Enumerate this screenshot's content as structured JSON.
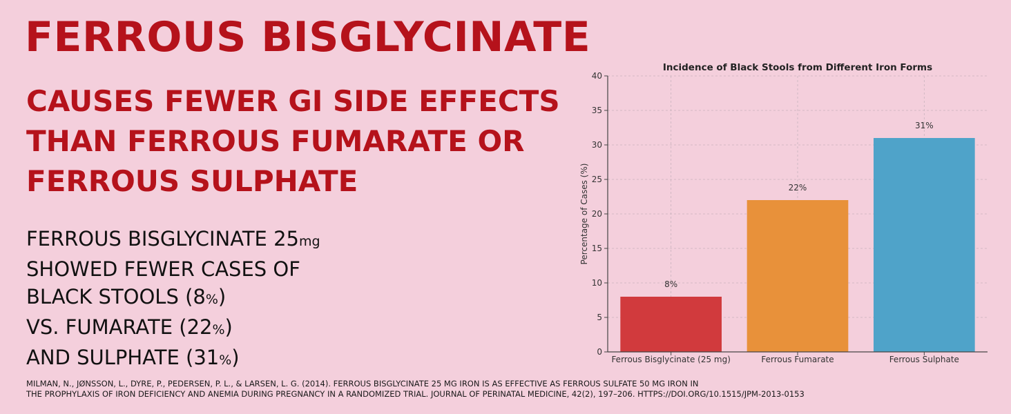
{
  "headline": "FERROUS BISGLYCINATE",
  "subheadline": [
    "CAUSES FEWER GI SIDE EFFECTS",
    "THAN FERROUS FUMARATE OR",
    "FERROUS SULPHATE"
  ],
  "body": {
    "line1_main": "FERROUS BISGLYCINATE 25",
    "line1_unit": "mg",
    "line2": "SHOWED FEWER CASES OF",
    "line3_main": "BLACK STOOLS (8",
    "line3_unit": "%",
    "line3_end": ")",
    "line4_main": "VS. FUMARATE (22",
    "line4_unit": "%",
    "line4_end": ")",
    "line5_main": "AND SULPHATE (31",
    "line5_unit": "%",
    "line5_end": ")"
  },
  "citation": [
    "MILMAN, N., JØNSSON, L., DYRE, P., PEDERSEN, P. L., & LARSEN, L. G. (2014). FERROUS BISGLYCINATE 25 MG IRON IS AS EFFECTIVE AS FERROUS SULFATE 50 MG IRON IN",
    "THE PROPHYLAXIS OF IRON DEFICIENCY AND ANEMIA DURING PREGNANCY IN A RANDOMIZED TRIAL. JOURNAL OF PERINATAL MEDICINE, 42(2), 197–206. HTTPS://DOI.ORG/10.1515/JPM-2013-0153"
  ],
  "colors": {
    "background": "#f4cfdc",
    "accent_red": "#b5121b",
    "grid": "#c9b3bd",
    "axis": "#444444"
  },
  "chart_data": {
    "type": "bar",
    "title": "Incidence of Black Stools from Different Iron Forms",
    "xlabel": "",
    "ylabel": "Percentage of Cases (%)",
    "ylim": [
      0,
      40
    ],
    "yticks": [
      0,
      5,
      10,
      15,
      20,
      25,
      30,
      35,
      40
    ],
    "grid": true,
    "categories": [
      "Ferrous Bisglycinate (25 mg)",
      "Ferrous Fumarate",
      "Ferrous Sulphate"
    ],
    "values": [
      8,
      22,
      31
    ],
    "data_labels": [
      "8%",
      "22%",
      "31%"
    ],
    "bar_colors": [
      "#d13a3d",
      "#e8913a",
      "#4fa3c9"
    ]
  }
}
